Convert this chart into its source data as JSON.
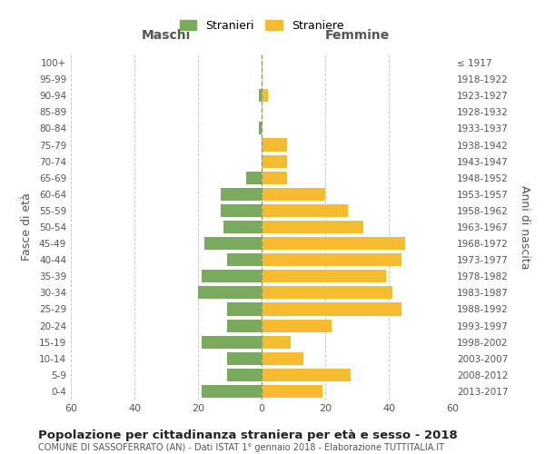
{
  "age_groups": [
    "0-4",
    "5-9",
    "10-14",
    "15-19",
    "20-24",
    "25-29",
    "30-34",
    "35-39",
    "40-44",
    "45-49",
    "50-54",
    "55-59",
    "60-64",
    "65-69",
    "70-74",
    "75-79",
    "80-84",
    "85-89",
    "90-94",
    "95-99",
    "100+"
  ],
  "birth_years": [
    "2013-2017",
    "2008-2012",
    "2003-2007",
    "1998-2002",
    "1993-1997",
    "1988-1992",
    "1983-1987",
    "1978-1982",
    "1973-1977",
    "1968-1972",
    "1963-1967",
    "1958-1962",
    "1953-1957",
    "1948-1952",
    "1943-1947",
    "1938-1942",
    "1933-1937",
    "1928-1932",
    "1923-1927",
    "1918-1922",
    "≤ 1917"
  ],
  "maschi": [
    19,
    11,
    11,
    19,
    11,
    11,
    20,
    19,
    11,
    18,
    12,
    13,
    13,
    5,
    0,
    0,
    1,
    0,
    1,
    0,
    0
  ],
  "femmine": [
    19,
    28,
    13,
    9,
    22,
    44,
    41,
    39,
    44,
    45,
    32,
    27,
    20,
    8,
    8,
    8,
    0,
    0,
    2,
    0,
    0
  ],
  "color_maschi": "#7aaa5d",
  "color_femmine": "#f5bc2f",
  "background_color": "#ffffff",
  "grid_color": "#cccccc",
  "title": "Popolazione per cittadinanza straniera per età e sesso - 2018",
  "subtitle": "COMUNE DI SASSOFERRATO (AN) - Dati ISTAT 1° gennaio 2018 - Elaborazione TUTTITALIA.IT",
  "xlabel_left": "Maschi",
  "xlabel_right": "Femmine",
  "ylabel_left": "Fasce di età",
  "ylabel_right": "Anni di nascita",
  "xlim": 60,
  "legend_maschi": "Stranieri",
  "legend_femmine": "Straniere"
}
